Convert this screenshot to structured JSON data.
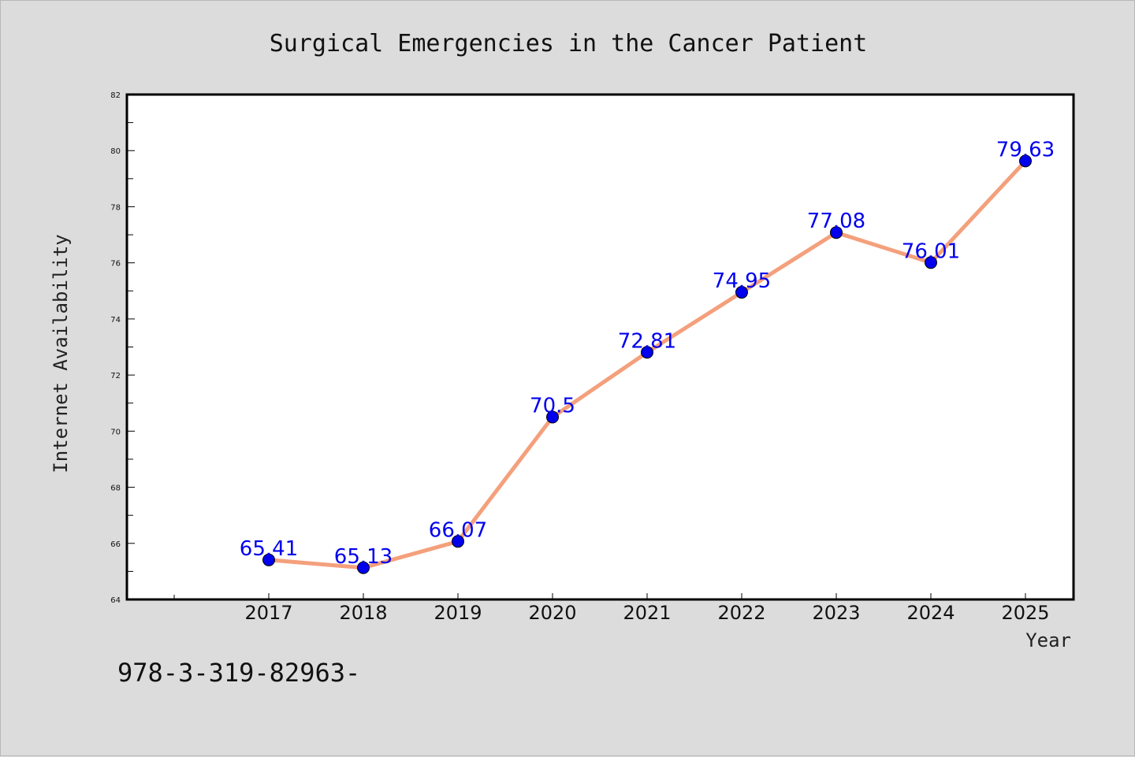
{
  "chart_data": {
    "type": "line",
    "title": "Surgical Emergencies in the Cancer Patient",
    "xlabel": "Year",
    "ylabel": "Internet Availability",
    "categories": [
      "2017",
      "2018",
      "2019",
      "2020",
      "2021",
      "2022",
      "2023",
      "2024",
      "2025"
    ],
    "series": [
      {
        "values": [
          65.41,
          65.13,
          66.07,
          70.5,
          72.81,
          74.95,
          77.08,
          76.01,
          79.63
        ],
        "line_color": "#f4a07c",
        "marker_color": "#0000ee"
      }
    ],
    "data_labels": [
      "65.41",
      "65.13",
      "66.07",
      "70.5",
      "72.81",
      "74.95",
      "77.08",
      "76.01",
      "79.63"
    ],
    "ylim": [
      64,
      82
    ],
    "yticks": [
      "64",
      "66",
      "68",
      "70",
      "72",
      "74",
      "76",
      "78",
      "80",
      "82"
    ],
    "grid": false,
    "legend": "none"
  },
  "footer": {
    "isbn_text": "978-3-319-82963-"
  },
  "colors": {
    "background": "#dcdcdc",
    "plot_background": "#ffffff",
    "axis": "#000000"
  }
}
